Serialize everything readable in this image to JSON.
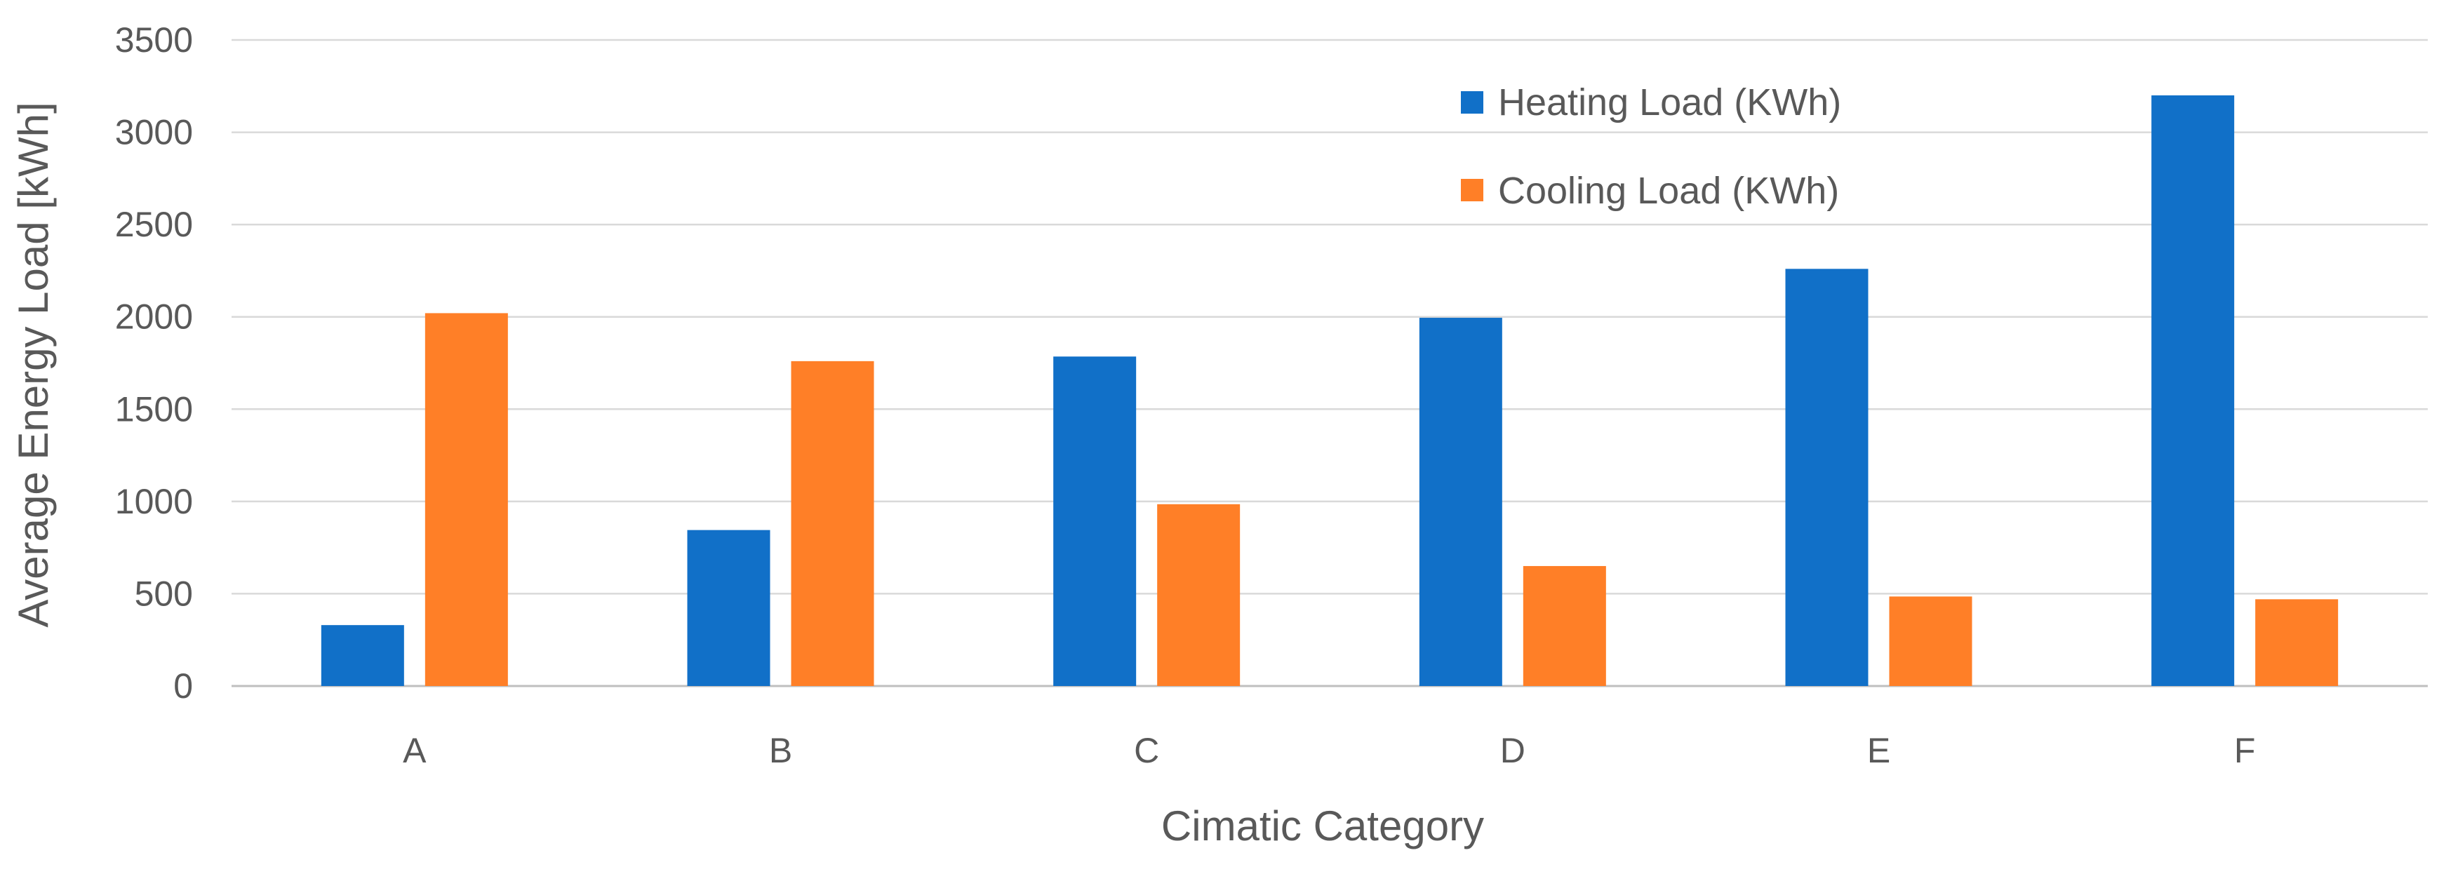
{
  "chart_data": {
    "type": "bar",
    "title": "",
    "xlabel": "Cimatic Category",
    "ylabel": "Average Energy Load [kWh]",
    "ylim": [
      0,
      3500
    ],
    "yticks": [
      0,
      500,
      1000,
      1500,
      2000,
      2500,
      3000,
      3500
    ],
    "ytick_labels": [
      "0",
      "500",
      "1000",
      "1500",
      "2000",
      "2500",
      "3000",
      "3500"
    ],
    "grid": true,
    "legend_position": "top-right",
    "categories": [
      "A",
      "B",
      "C",
      "D",
      "E",
      "F"
    ],
    "series": [
      {
        "name": "Heating Load (KWh)",
        "color": "#1170C8",
        "values": [
          330,
          845,
          1785,
          1995,
          2260,
          3200
        ]
      },
      {
        "name": "Cooling Load (KWh)",
        "color": "#FF7F27",
        "values": [
          2020,
          1760,
          985,
          650,
          485,
          470
        ]
      }
    ],
    "colors": {
      "grid": "#d9d9d9",
      "axis_text": "#595959",
      "background": "#ffffff"
    }
  }
}
